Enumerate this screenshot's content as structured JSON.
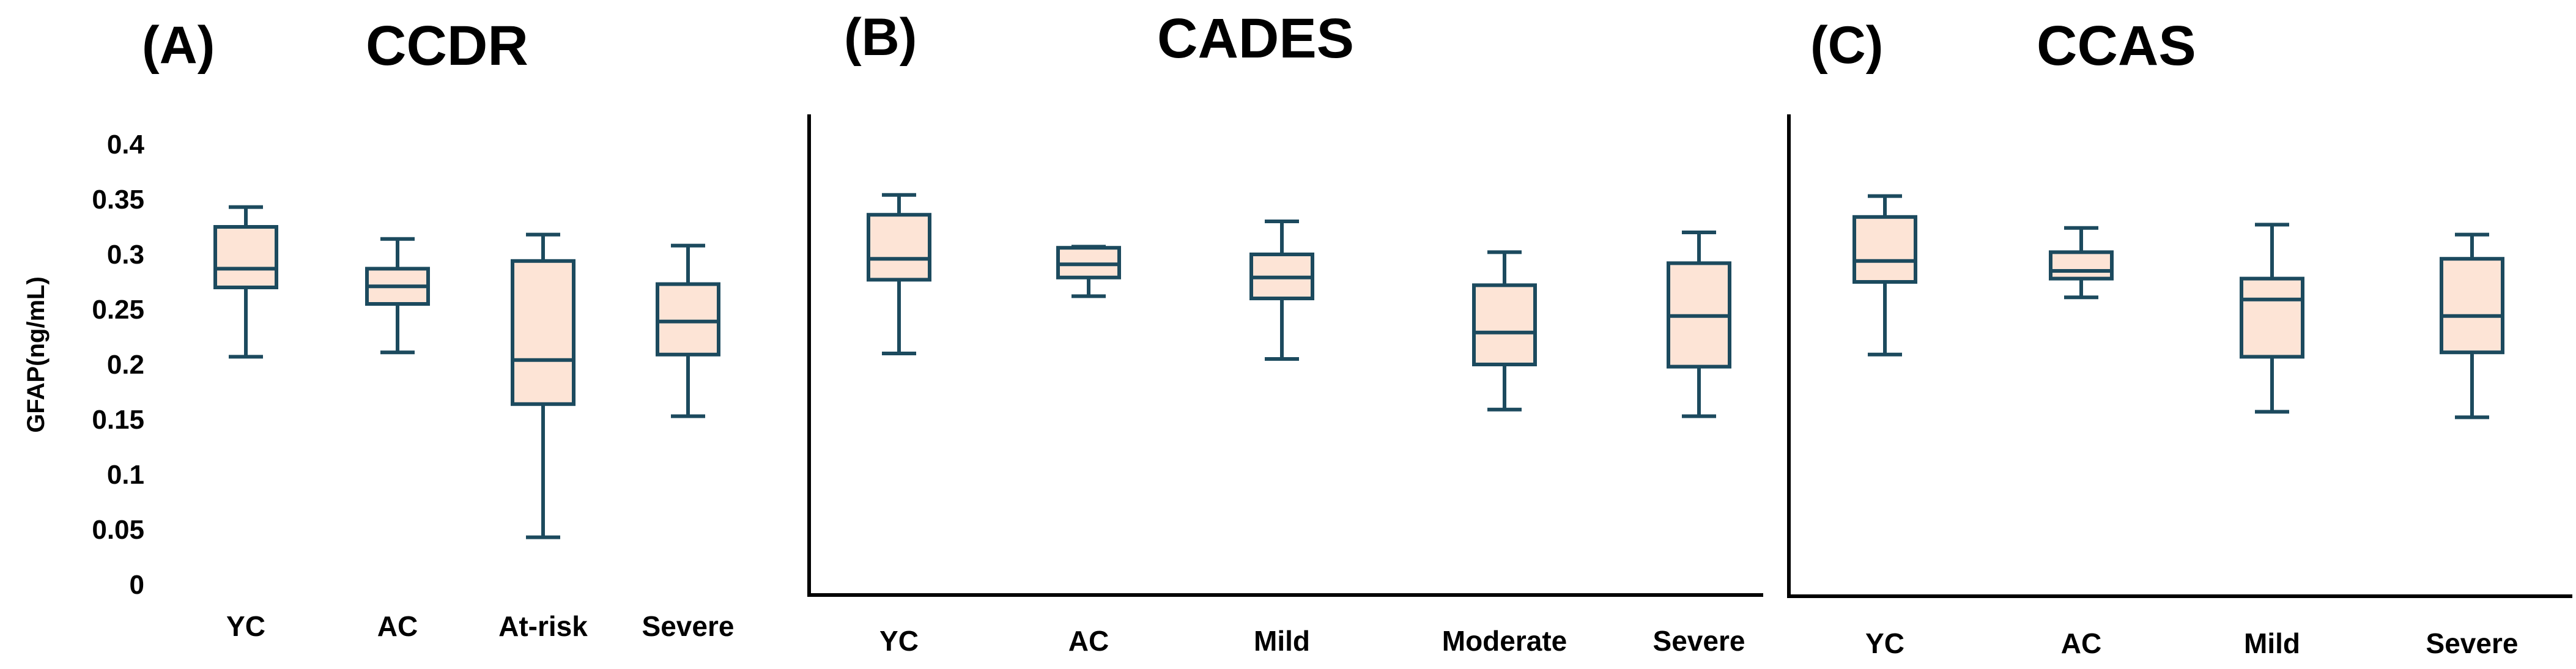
{
  "colors": {
    "box_fill": "#fde4d6",
    "box_stroke": "#1c4a5e",
    "axis": "#000000"
  },
  "chart_data": [
    {
      "type": "box",
      "panel_label": "(A)",
      "title": "CCDR",
      "ylabel": "GFAP(ng/mL)",
      "ylim": [
        0,
        0.4
      ],
      "yticks": [
        "0",
        "0.05",
        "0.1",
        "0.15",
        "0.2",
        "0.25",
        "0.3",
        "0.35",
        "0.4"
      ],
      "categories": [
        "YC",
        "AC",
        "At-risk",
        "Severe"
      ],
      "boxes": [
        {
          "min": 0.207,
          "q1": 0.27,
          "median": 0.287,
          "q3": 0.325,
          "max": 0.343
        },
        {
          "min": 0.211,
          "q1": 0.255,
          "median": 0.271,
          "q3": 0.287,
          "max": 0.314
        },
        {
          "min": 0.043,
          "q1": 0.164,
          "median": 0.204,
          "q3": 0.294,
          "max": 0.318
        },
        {
          "min": 0.153,
          "q1": 0.209,
          "median": 0.239,
          "q3": 0.273,
          "max": 0.308
        }
      ]
    },
    {
      "type": "box",
      "panel_label": "(B)",
      "title": "CADES",
      "ylim": [
        0,
        0.4
      ],
      "categories": [
        "YC",
        "AC",
        "Mild",
        "Moderate",
        "Severe"
      ],
      "boxes": [
        {
          "min": 0.21,
          "q1": 0.277,
          "median": 0.296,
          "q3": 0.336,
          "max": 0.354
        },
        {
          "min": 0.262,
          "q1": 0.279,
          "median": 0.291,
          "q3": 0.306,
          "max": 0.307
        },
        {
          "min": 0.205,
          "q1": 0.26,
          "median": 0.279,
          "q3": 0.3,
          "max": 0.33
        },
        {
          "min": 0.159,
          "q1": 0.2,
          "median": 0.229,
          "q3": 0.272,
          "max": 0.302
        },
        {
          "min": 0.153,
          "q1": 0.198,
          "median": 0.244,
          "q3": 0.292,
          "max": 0.32
        }
      ]
    },
    {
      "type": "box",
      "panel_label": "(C)",
      "title": "CCAS",
      "ylim": [
        0,
        0.4
      ],
      "categories": [
        "YC",
        "AC",
        "Mild",
        "Severe"
      ],
      "boxes": [
        {
          "min": 0.209,
          "q1": 0.275,
          "median": 0.294,
          "q3": 0.334,
          "max": 0.353
        },
        {
          "min": 0.261,
          "q1": 0.278,
          "median": 0.285,
          "q3": 0.302,
          "max": 0.324
        },
        {
          "min": 0.157,
          "q1": 0.207,
          "median": 0.259,
          "q3": 0.278,
          "max": 0.327
        },
        {
          "min": 0.152,
          "q1": 0.211,
          "median": 0.244,
          "q3": 0.296,
          "max": 0.318
        }
      ]
    }
  ]
}
